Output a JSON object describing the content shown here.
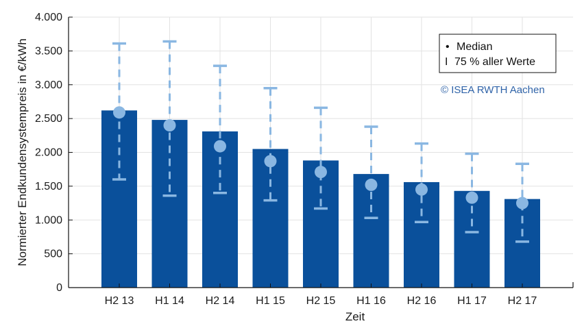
{
  "chart_data": {
    "type": "bar",
    "categories": [
      "H2 13",
      "H1 14",
      "H2 14",
      "H1 15",
      "H2 15",
      "H1 16",
      "H2 16",
      "H1 17",
      "H2 17"
    ],
    "values": [
      2620,
      2480,
      2310,
      2050,
      1880,
      1680,
      1560,
      1430,
      1310
    ],
    "median": [
      2590,
      2400,
      2090,
      1870,
      1710,
      1520,
      1450,
      1330,
      1250
    ],
    "range_low": [
      1600,
      1360,
      1400,
      1290,
      1170,
      1030,
      970,
      820,
      680
    ],
    "range_high": [
      3610,
      3640,
      3280,
      2950,
      2660,
      2380,
      2130,
      1980,
      1830
    ],
    "xlabel": "Zeit",
    "ylabel": "Normierter Endkundensystempreis in €/kWh",
    "ylim": [
      0,
      4000
    ],
    "yticks": [
      0,
      500,
      1000,
      1500,
      2000,
      2500,
      3000,
      3500,
      4000
    ],
    "ytick_labels": [
      "0",
      "500",
      "1.000",
      "1.500",
      "2.000",
      "2.500",
      "3.000",
      "3.500",
      "4.000"
    ],
    "grid": true,
    "legend": {
      "placement": "top-right",
      "entries": [
        {
          "symbol": "•",
          "label": "Median"
        },
        {
          "symbol": "I",
          "label": "75 % aller Werte"
        }
      ]
    },
    "annotation": "© ISEA RWTH Aachen",
    "colors": {
      "bar": "#0a509b",
      "marker": "#8ab7e2",
      "grid": "#e2e2e2",
      "axis": "#111111",
      "annotation": "#2f63a8"
    }
  }
}
